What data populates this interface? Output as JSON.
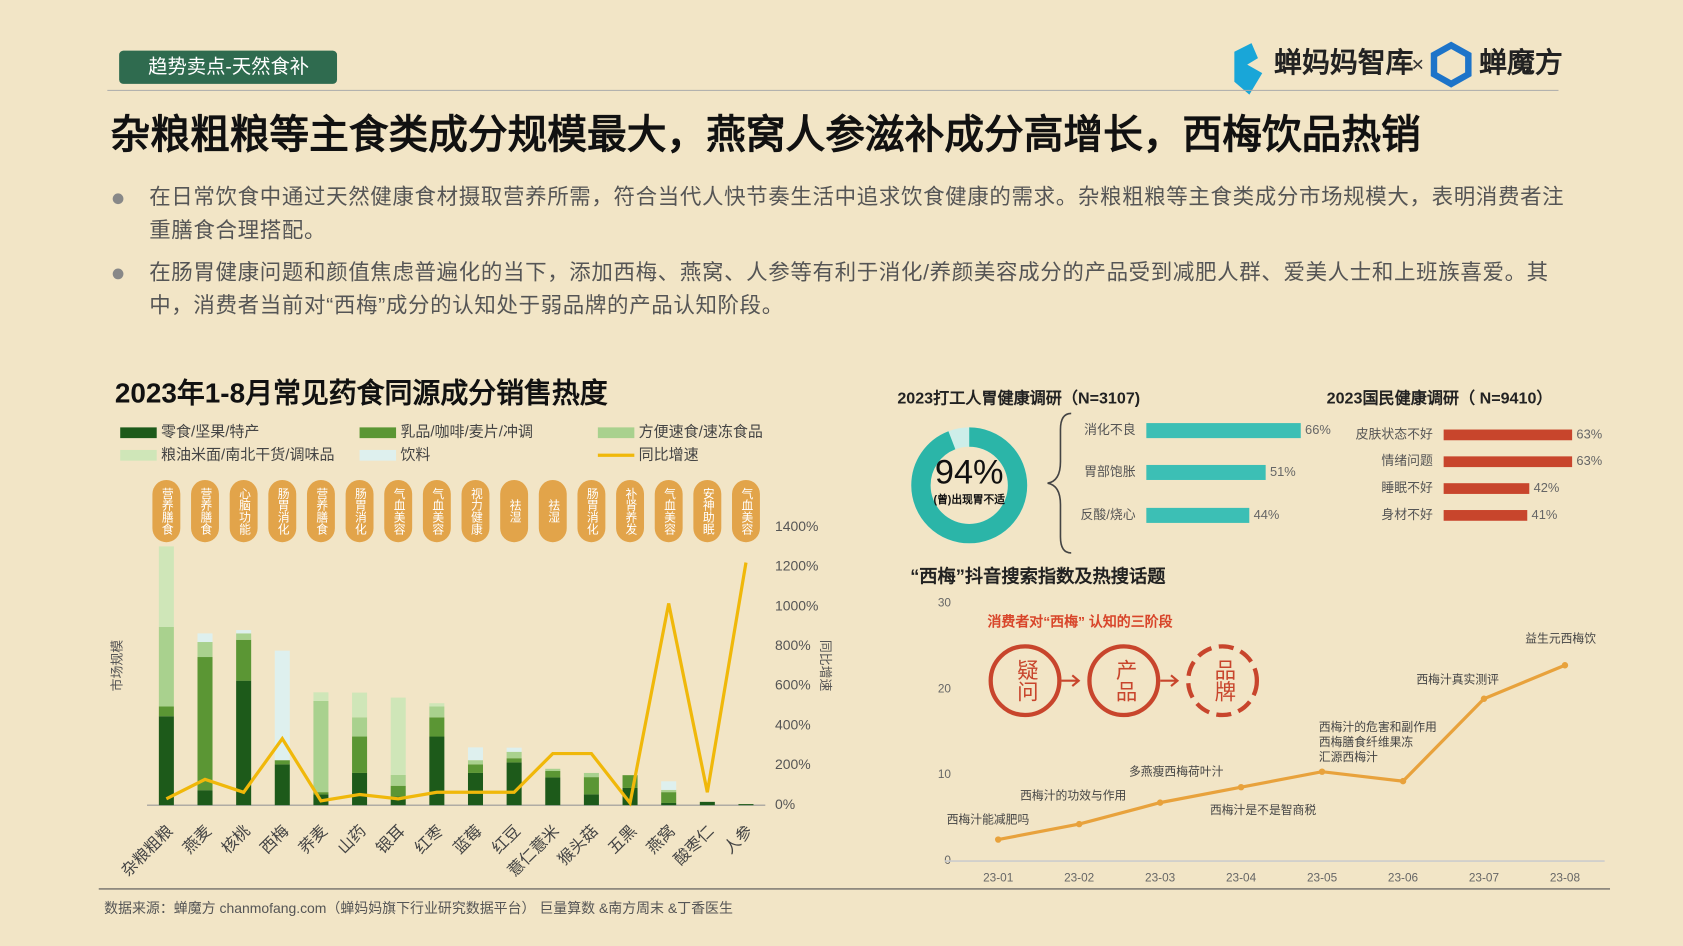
{
  "tag": "趋势卖点-天然食补",
  "brand": {
    "left": "蝉妈妈智库",
    "sep": "×",
    "right": "蝉魔方"
  },
  "title": "杂粮粗粮等主食类成分规模最大，燕窝人参滋补成分高增长，西梅饮品热销",
  "bullets": [
    "在日常饮食中通过天然健康食材摄取营养所需，符合当代人快节奏生活中追求饮食健康的需求。杂粮粗粮等主食类成分市场规模大，表明消费者注重膳食合理搭配。",
    "在肠胃健康问题和颜值焦虑普遍化的当下，添加西梅、燕窝、人参等有利于消化/养颜美容成分的产品受到减肥人群、爱美人士和上班族喜爱。其中，消费者当前对“西梅”成分的认知处于弱品牌的产品认知阶段。"
  ],
  "source": "数据来源：蝉魔方 chanmofang.com（蝉妈妈旗下行业研究数据平台） 巨量算数 &南方周末 &丁香医生",
  "chart_data": [
    {
      "type": "bar",
      "stacked": true,
      "title": "2023年1-8月常见药食同源成分销售热度",
      "y_label": "市场规模",
      "y2_label": "同比增速",
      "categories": [
        "杂粮粗粮",
        "燕麦",
        "核桃",
        "西梅",
        "荞麦",
        "山药",
        "银耳",
        "红枣",
        "蓝莓",
        "红豆",
        "薏仁薏米",
        "猴头菇",
        "五黑",
        "燕窝",
        "酸枣仁",
        "人参"
      ],
      "tags": [
        "营养膳食",
        "营养膳食",
        "心脑功能",
        "肠胃消化",
        "营养膳食",
        "肠胃消化",
        "气血美容",
        "气血美容",
        "视力健康",
        "祛湿",
        "祛湿",
        "肠胃消化",
        "补肾养发",
        "气血美容",
        "安神助眠",
        "气血美容"
      ],
      "ylim": [
        0,
        100
      ],
      "y2lim": [
        0,
        1400
      ],
      "y2ticks": [
        {
          "value": 0,
          "label": "0%"
        },
        {
          "value": 200,
          "label": "200%"
        },
        {
          "value": 400,
          "label": "400%"
        },
        {
          "value": 600,
          "label": "600%"
        },
        {
          "value": 800,
          "label": "800%"
        },
        {
          "value": 1000,
          "label": "1000%"
        },
        {
          "value": 1200,
          "label": "1200%"
        },
        {
          "value": 1400,
          "label": "1400%"
        }
      ],
      "series": [
        {
          "name": "零食/坚果/特产",
          "color": "#1d5a1a",
          "values": [
            32,
            5.4,
            44.8,
            14.7,
            3.9,
            11.6,
            3.1,
            24.7,
            11.6,
            15.4,
            10,
            3.9,
            6.2,
            0.8,
            1.2,
            0.4
          ]
        },
        {
          "name": "乳品/咖啡/麦片/冲调",
          "color": "#5b9634",
          "values": [
            3.5,
            47.9,
            14.7,
            1.5,
            0.8,
            13.1,
            3.9,
            6.9,
            3.1,
            1.5,
            2.3,
            6.2,
            4.6,
            3.9,
            0,
            0
          ]
        },
        {
          "name": "方便速食/速冻食品",
          "color": "#a9d18e",
          "values": [
            28.6,
            5.4,
            2.3,
            0,
            32.8,
            6.9,
            3.9,
            3.9,
            1.5,
            2.3,
            0.8,
            1.5,
            0,
            0.8,
            0,
            0
          ]
        },
        {
          "name": "粮油米面/南北干货/调味品",
          "color": "#cfe6b8",
          "values": [
            29,
            0,
            0,
            0,
            3.1,
            8.9,
            27.8,
            1.2,
            0,
            0,
            0,
            0,
            0,
            0,
            0,
            0
          ]
        },
        {
          "name": "饮料",
          "color": "#def0ee",
          "values": [
            0,
            3.1,
            1.2,
            39.4,
            0,
            0,
            0,
            0,
            4.6,
            1.5,
            0,
            0,
            0,
            3.1,
            0,
            0
          ]
        },
        {
          "name": "同比增速",
          "type": "line",
          "axis": "y2",
          "color": "#f0b80a",
          "values": [
            32,
            130,
            65,
            335,
            22,
            54,
            32,
            65,
            65,
            65,
            260,
            260,
            11,
            1016,
            65,
            1222
          ]
        }
      ]
    },
    {
      "type": "donut",
      "values": [
        94
      ],
      "value_labels": [
        "94%"
      ],
      "label": "(曾)出现胃不适",
      "color": "#2bb5a8"
    },
    {
      "type": "bar",
      "orientation": "horizontal",
      "title": "2023打工人胃健康调研（N=3107)",
      "categories": [
        "消化不良",
        "胃部饱胀",
        "反酸/烧心"
      ],
      "values": [
        66,
        51,
        44
      ],
      "value_labels": [
        "66%",
        "51%",
        "44%"
      ],
      "xlim": [
        0,
        100
      ],
      "color": "#3cbfb5"
    },
    {
      "type": "bar",
      "orientation": "horizontal",
      "title": "2023国民健康调研（ N=9410）",
      "categories": [
        "皮肤状态不好",
        "情绪问题",
        "睡眠不好",
        "身材不好"
      ],
      "values": [
        63,
        63,
        42,
        41
      ],
      "value_labels": [
        "63%",
        "63%",
        "42%",
        "41%"
      ],
      "xlim": [
        0,
        100
      ],
      "color": "#c8452c"
    },
    {
      "type": "line",
      "title": "“西梅”抖音搜索指数及热搜话题",
      "x": [
        "23-01",
        "23-02",
        "23-03",
        "23-04",
        "23-05",
        "23-06",
        "23-07",
        "23-08"
      ],
      "values": [
        2.5,
        4.3,
        6.8,
        8.6,
        10.4,
        9.3,
        18.9,
        22.8
      ],
      "color": "#e8a23c",
      "ylim": [
        0,
        30
      ],
      "yticks": [
        0,
        10,
        20,
        30
      ],
      "point_labels": [
        [
          "西梅汁能减肥吗"
        ],
        [
          "西梅汁的功效与作用"
        ],
        [
          "多燕瘦西梅荷叶汁"
        ],
        [
          "西梅汁是不是智商税"
        ],
        [
          "西梅汁的危害和副作用",
          "西梅膳食纤维果冻",
          "汇源西梅汁"
        ],
        null,
        [
          "西梅汁真实测评"
        ],
        [
          "益生元西梅饮"
        ]
      ],
      "inset": {
        "title": "消费者对“西梅” 认知的三阶段",
        "stages": [
          "疑问",
          "产品",
          "品牌"
        ]
      }
    }
  ]
}
